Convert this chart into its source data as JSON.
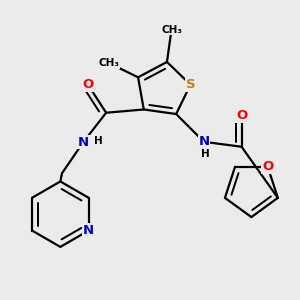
{
  "bg_color": "#ebebeb",
  "atom_colors": {
    "S": "#b8860b",
    "O": "#ff0000",
    "N": "#0000cd",
    "C": "#000000",
    "H": "#000000"
  },
  "bond_color": "#000000",
  "bond_width": 1.6,
  "figsize": [
    3.0,
    3.0
  ],
  "dpi": 100
}
